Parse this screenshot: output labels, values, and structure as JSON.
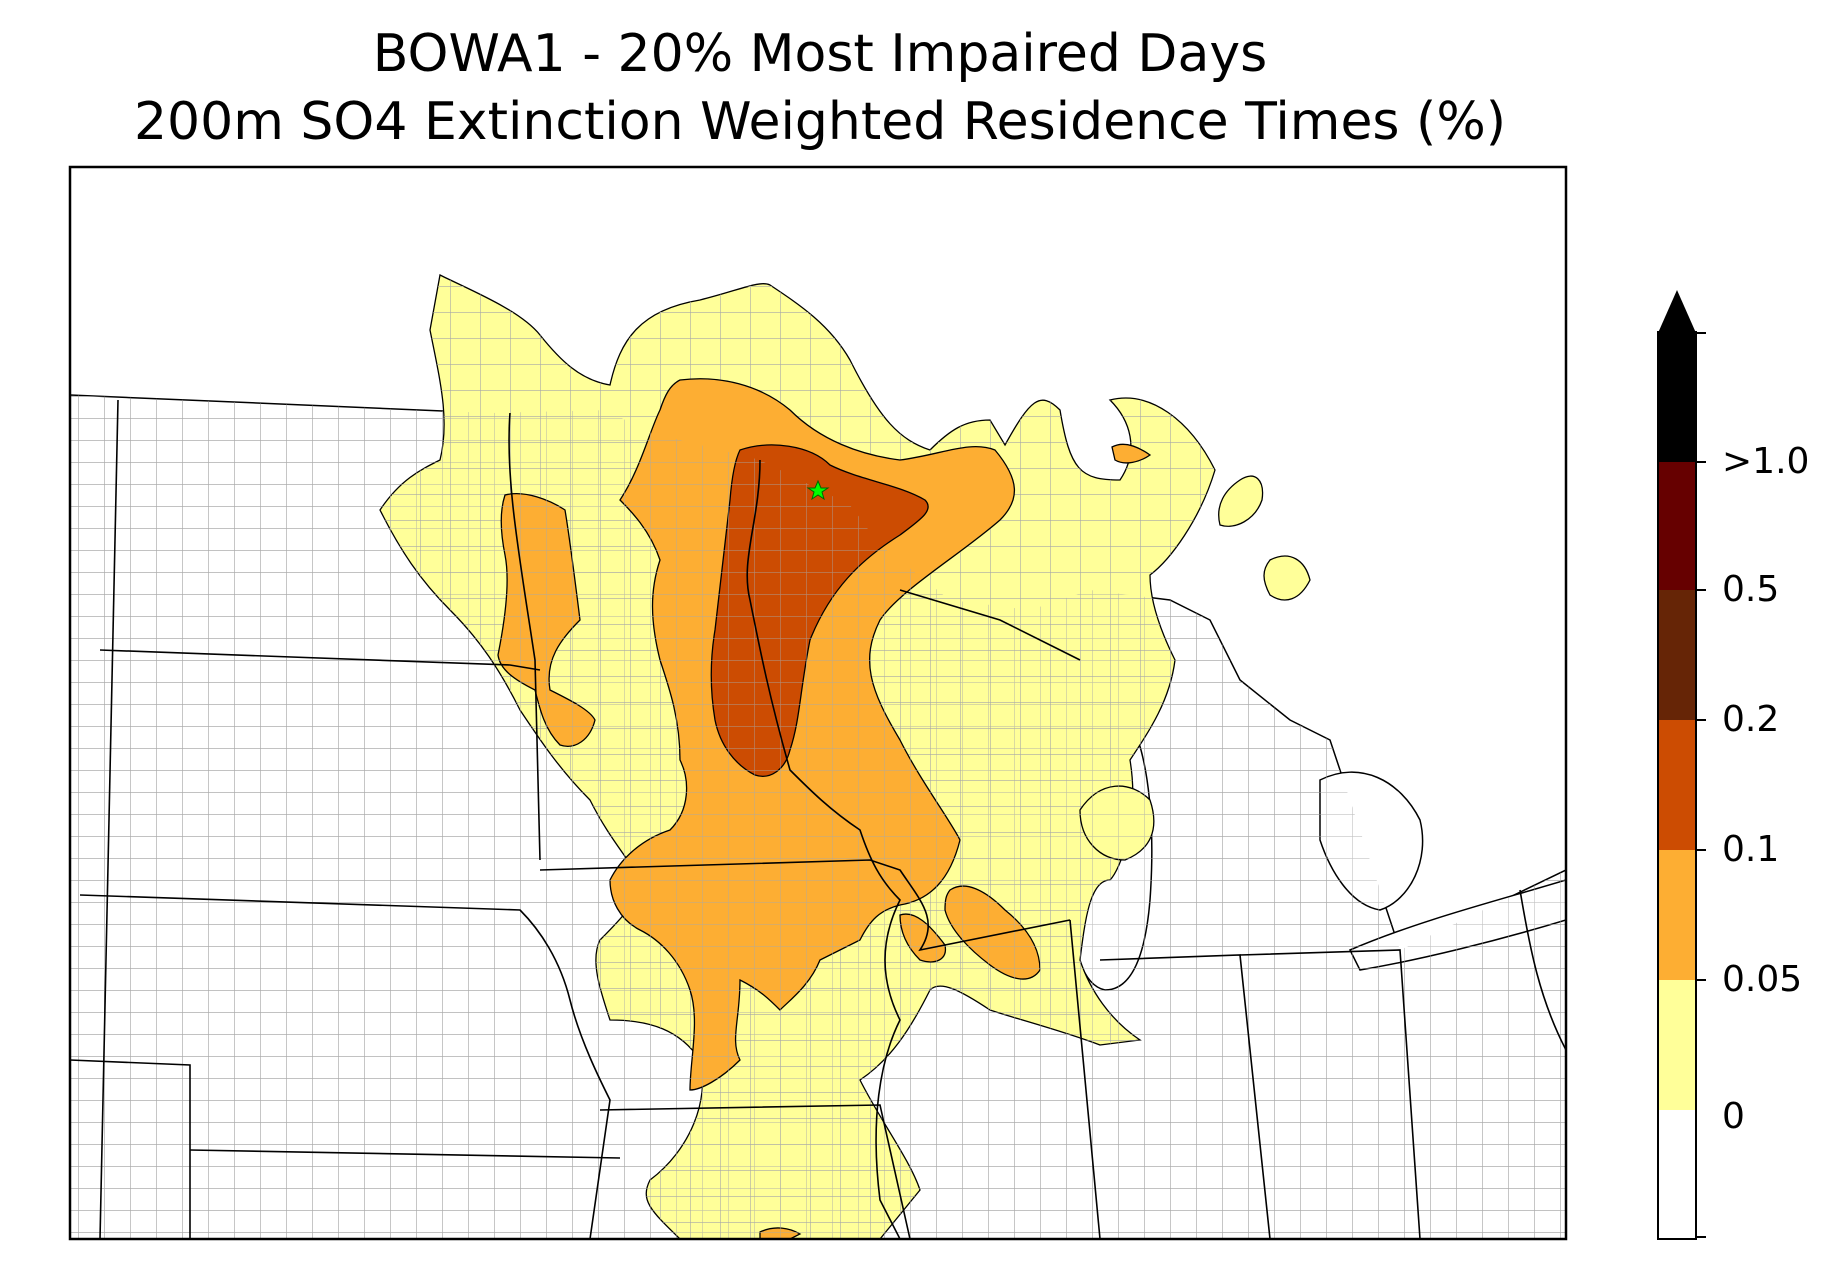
{
  "title_line1": "BOWA1 - 20% Most Impaired Days",
  "title_line2": "200m SO4 Extinction Weighted Residence Times (%)",
  "colorbar": {
    "extend": "max",
    "labels": [
      "0",
      "0.05",
      "0.1",
      "0.2",
      "0.5",
      ">1.0"
    ],
    "colors": [
      "#ffffff",
      "#ffff99",
      "#fdae33",
      "#cc4c02",
      "#662506",
      "#000000"
    ]
  },
  "site_marker": {
    "symbol": "star",
    "color": "#00ff00"
  },
  "colors": {
    "border": "#000000",
    "county_lines": "#a0a0a0",
    "state_lines": "#000000"
  }
}
